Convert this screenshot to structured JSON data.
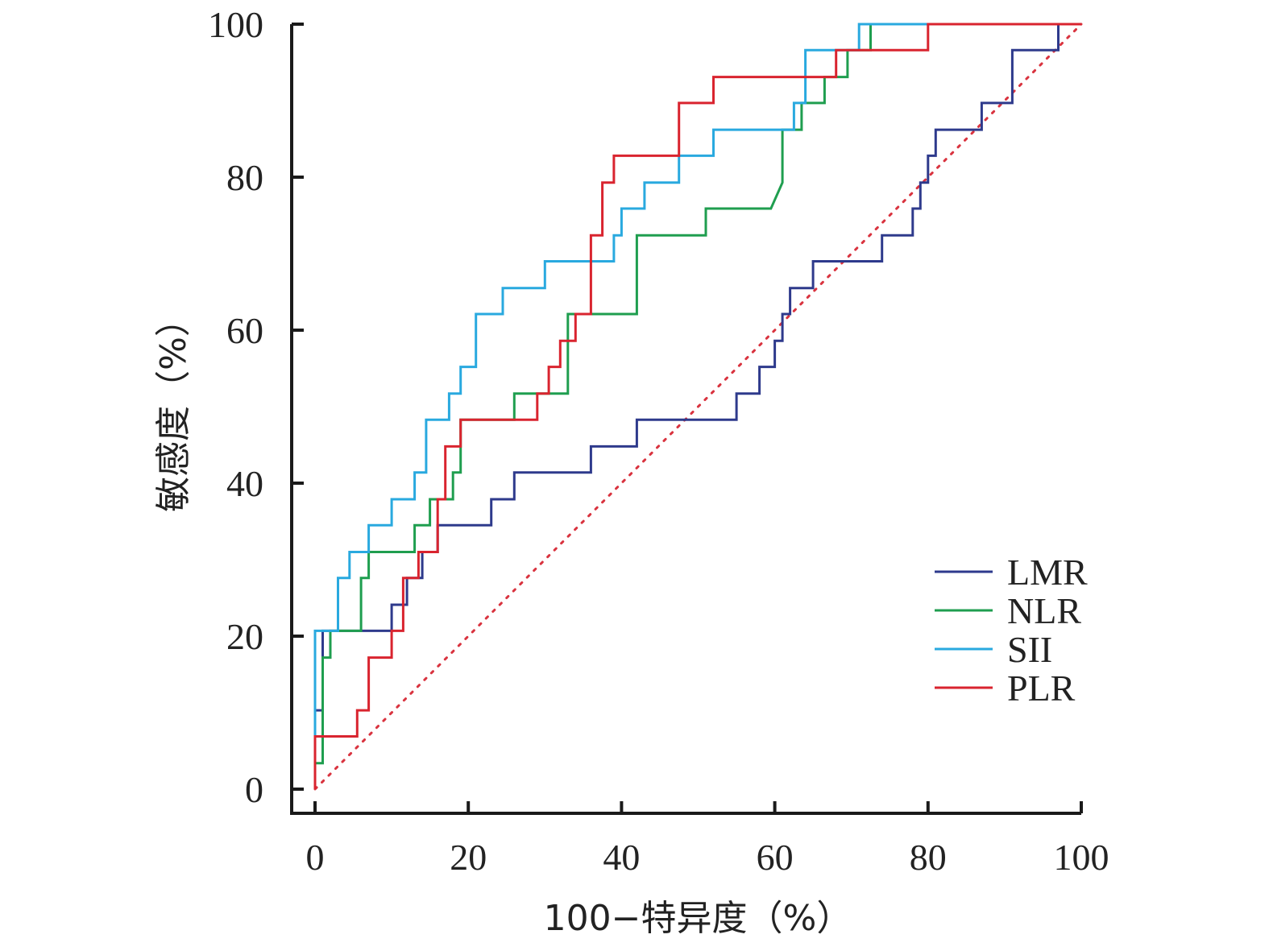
{
  "chart_data": {
    "type": "line",
    "xlabel": "100−特异度（%）",
    "ylabel": "敏感度（%）",
    "xlim": [
      0,
      100
    ],
    "ylim": [
      0,
      100
    ],
    "xticks": [
      "0",
      "20",
      "40",
      "60",
      "80",
      "100"
    ],
    "yticks": [
      "0",
      "20",
      "40",
      "60",
      "80",
      "100"
    ],
    "grid": false,
    "legend_position": "bottom-right",
    "reference_line": {
      "style": "dotted",
      "color": "#d9333f",
      "x": [
        0,
        100
      ],
      "y": [
        0,
        100
      ]
    },
    "series": [
      {
        "name": "LMR",
        "color": "#2e3a8c",
        "x": [
          0,
          0,
          1,
          1,
          10,
          10,
          12,
          12,
          14,
          14,
          16,
          16,
          23,
          23,
          26,
          26,
          36,
          36,
          42,
          42,
          55,
          55,
          58,
          58,
          60,
          60,
          61,
          61,
          62,
          62,
          65,
          65,
          74,
          74,
          78,
          78,
          79,
          79,
          80,
          80,
          81,
          81,
          87,
          87,
          91,
          91,
          97,
          97
        ],
        "y": [
          0,
          10.3,
          10.3,
          20.7,
          20.7,
          24.1,
          24.1,
          27.6,
          27.6,
          31,
          31,
          34.5,
          34.5,
          37.9,
          37.9,
          41.4,
          41.4,
          44.8,
          44.8,
          48.3,
          48.3,
          51.7,
          51.7,
          55.2,
          55.2,
          58.6,
          58.6,
          62.1,
          62.1,
          65.5,
          65.5,
          69,
          69,
          72.4,
          72.4,
          75.9,
          75.9,
          79.3,
          79.3,
          82.8,
          82.8,
          86.2,
          86.2,
          89.7,
          89.7,
          96.6,
          96.6,
          100
        ]
      },
      {
        "name": "NLR",
        "color": "#1f9e4f",
        "x": [
          0,
          0,
          1,
          1,
          2,
          2,
          3,
          3,
          6,
          6,
          7,
          7,
          13,
          13,
          15,
          15,
          18,
          18,
          19,
          19,
          26,
          26,
          33,
          33,
          42,
          42,
          51,
          51,
          59.5,
          61,
          61,
          63.5,
          63.5,
          66.5,
          66.5,
          69.5,
          69.5,
          72.5,
          72.5,
          100
        ],
        "y": [
          0,
          3.4,
          3.4,
          17.2,
          17.2,
          20.7,
          20.7,
          20.7,
          20.7,
          27.6,
          27.6,
          31,
          31,
          34.5,
          34.5,
          37.9,
          37.9,
          41.4,
          41.4,
          48.3,
          48.3,
          51.7,
          51.7,
          62.1,
          62.1,
          72.4,
          72.4,
          75.9,
          75.9,
          79.3,
          86.2,
          86.2,
          89.7,
          89.7,
          93.1,
          93.1,
          96.6,
          96.6,
          100,
          100
        ]
      },
      {
        "name": "SII",
        "color": "#29a9df",
        "x": [
          0,
          0,
          3,
          3,
          4.5,
          4.5,
          7,
          7,
          10,
          10,
          13,
          13,
          14.5,
          14.5,
          17.5,
          17.5,
          19,
          19,
          21,
          21,
          24.5,
          24.5,
          30,
          30,
          39,
          39,
          40,
          40,
          43,
          43,
          47.5,
          47.5,
          52,
          52,
          62.5,
          62.5,
          64,
          64,
          71,
          71,
          100
        ],
        "y": [
          0,
          20.7,
          20.7,
          27.6,
          27.6,
          31,
          31,
          34.5,
          34.5,
          37.9,
          37.9,
          41.4,
          41.4,
          48.3,
          48.3,
          51.7,
          51.7,
          55.2,
          55.2,
          62.1,
          62.1,
          65.5,
          65.5,
          69,
          69,
          72.4,
          72.4,
          75.9,
          75.9,
          79.3,
          79.3,
          82.8,
          82.8,
          86.2,
          86.2,
          89.7,
          89.7,
          96.6,
          96.6,
          100,
          100
        ]
      },
      {
        "name": "PLR",
        "color": "#d9242f",
        "x": [
          0,
          0,
          5.5,
          5.5,
          7,
          7,
          10,
          10,
          11.5,
          11.5,
          13.5,
          13.5,
          16,
          16,
          17,
          17,
          19,
          19,
          29,
          29,
          30.5,
          30.5,
          32,
          32,
          34,
          34,
          36,
          36,
          37.5,
          37.5,
          39,
          39,
          47.5,
          47.5,
          52,
          52,
          68,
          68,
          80,
          80,
          100
        ],
        "y": [
          0,
          6.9,
          6.9,
          10.3,
          10.3,
          17.2,
          17.2,
          20.7,
          20.7,
          27.6,
          27.6,
          31,
          31,
          37.9,
          37.9,
          44.8,
          44.8,
          48.3,
          48.3,
          51.7,
          51.7,
          55.2,
          55.2,
          58.6,
          58.6,
          62.1,
          62.1,
          72.4,
          72.4,
          79.3,
          79.3,
          82.8,
          82.8,
          89.7,
          89.7,
          93.1,
          93.1,
          96.6,
          96.6,
          100,
          100
        ]
      }
    ]
  }
}
